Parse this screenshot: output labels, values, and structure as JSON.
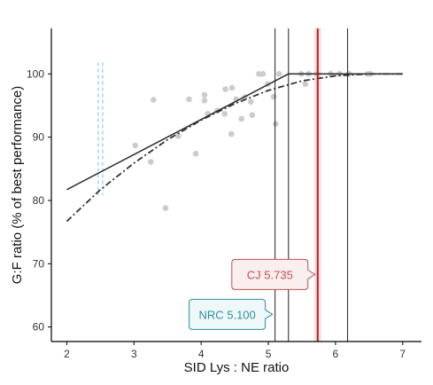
{
  "chart_data": {
    "type": "scatter",
    "xlabel": "SID Lys : NE ratio",
    "ylabel": "G:F ratio (% of best performance)",
    "xlim": [
      1.77,
      7.28
    ],
    "ylim": [
      57.7,
      107.2
    ],
    "x_ticks": [
      2,
      3,
      4,
      5,
      6,
      7
    ],
    "y_ticks": [
      60,
      70,
      80,
      90,
      100
    ],
    "grid": false,
    "points": [
      {
        "x": 3.02,
        "y": 88.7
      },
      {
        "x": 3.25,
        "y": 86.1
      },
      {
        "x": 3.29,
        "y": 95.9
      },
      {
        "x": 3.47,
        "y": 78.8
      },
      {
        "x": 3.66,
        "y": 90.2
      },
      {
        "x": 3.82,
        "y": 96.0
      },
      {
        "x": 3.92,
        "y": 87.4
      },
      {
        "x": 4.05,
        "y": 96.7
      },
      {
        "x": 4.05,
        "y": 95.8
      },
      {
        "x": 4.1,
        "y": 93.7
      },
      {
        "x": 4.24,
        "y": 94.2
      },
      {
        "x": 4.35,
        "y": 93.7
      },
      {
        "x": 4.36,
        "y": 97.6
      },
      {
        "x": 4.46,
        "y": 97.8
      },
      {
        "x": 4.45,
        "y": 90.5
      },
      {
        "x": 4.52,
        "y": 96.0
      },
      {
        "x": 4.6,
        "y": 92.9
      },
      {
        "x": 4.65,
        "y": 96.3
      },
      {
        "x": 4.74,
        "y": 95.6
      },
      {
        "x": 4.76,
        "y": 93.5
      },
      {
        "x": 4.86,
        "y": 100.0
      },
      {
        "x": 4.92,
        "y": 100.0
      },
      {
        "x": 4.99,
        "y": 98.4
      },
      {
        "x": 5.08,
        "y": 96.4
      },
      {
        "x": 5.11,
        "y": 92.1
      },
      {
        "x": 5.16,
        "y": 100.0
      },
      {
        "x": 5.49,
        "y": 100.0
      },
      {
        "x": 5.55,
        "y": 98.4
      },
      {
        "x": 5.6,
        "y": 100.0
      },
      {
        "x": 5.73,
        "y": 100.0
      },
      {
        "x": 5.93,
        "y": 100.0
      },
      {
        "x": 6.06,
        "y": 100.0
      },
      {
        "x": 6.2,
        "y": 100.0
      },
      {
        "x": 6.48,
        "y": 100.0
      },
      {
        "x": 6.52,
        "y": 100.0
      }
    ],
    "broken_line_fit": [
      {
        "x": 2.0,
        "y": 81.7
      },
      {
        "x": 5.3,
        "y": 100.0
      },
      {
        "x": 7.0,
        "y": 100.0
      }
    ],
    "quadratic_fit": [
      {
        "x": 2.0,
        "y": 76.7
      },
      {
        "x": 2.5,
        "y": 81.7
      },
      {
        "x": 3.0,
        "y": 85.9
      },
      {
        "x": 3.5,
        "y": 89.6
      },
      {
        "x": 4.0,
        "y": 92.7
      },
      {
        "x": 4.5,
        "y": 95.3
      },
      {
        "x": 5.0,
        "y": 97.4
      },
      {
        "x": 5.5,
        "y": 98.9
      },
      {
        "x": 6.0,
        "y": 99.7
      },
      {
        "x": 6.5,
        "y": 100.0
      },
      {
        "x": 7.0,
        "y": 100.0
      }
    ],
    "vertical_lines": [
      {
        "x": 5.1,
        "color": "#222222"
      },
      {
        "x": 5.3,
        "color": "#222222"
      },
      {
        "x": 6.18,
        "color": "#222222"
      },
      {
        "x": 5.735,
        "color": "#b22222"
      }
    ],
    "shaded_band": {
      "x": 5.735,
      "half_width": 0.05,
      "color": "#f0d4d4"
    },
    "dashed_marker": {
      "x": 2.5,
      "y_from": 80.8,
      "y_to": 101.8,
      "color": "#a8d8ee"
    },
    "annotations": [
      {
        "text": "CJ 5.735",
        "x": 5.735,
        "y": 68.3,
        "color": "#c0504d",
        "fill": "#fbeeee"
      },
      {
        "text": "NRC 5.100",
        "x": 5.1,
        "y": 62.0,
        "color": "#2f8fa0",
        "fill": "#eef8f8"
      }
    ],
    "colors": {
      "points": "#cccccc",
      "fit_lines": "#333333",
      "axis": "#000000"
    }
  }
}
